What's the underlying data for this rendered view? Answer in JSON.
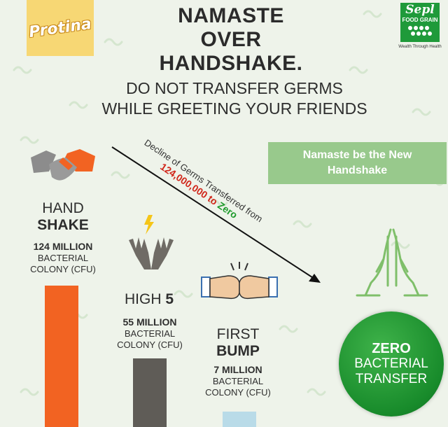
{
  "brand": {
    "left_logo": "Protina",
    "right_logo_line1": "Sepl",
    "right_logo_line2": "FOOD GRAIN",
    "right_logo_tagline": "Wealth Through Health"
  },
  "headline": {
    "line1": "NAMASTE",
    "line2": "OVER",
    "line3": "HANDSHAKE."
  },
  "subhead": {
    "line1": "DO NOT TRANSFER GERMS",
    "line2": "WHILE GREETING YOUR FRIENDS"
  },
  "banner": {
    "line1": "Namaste be the New",
    "line2": "Handshake"
  },
  "arrow": {
    "line1": "Decline of Germs Transferred from",
    "from": "124,000,000",
    "to_word": "to",
    "to": "Zero"
  },
  "items": [
    {
      "title_a": "HAND",
      "title_b": "SHAKE",
      "count": "124 MILLION",
      "unit1": "BACTERIAL",
      "unit2": "COLONY (CFU)",
      "value": 124000000,
      "color": "#f26322",
      "icon": "handshake-icon"
    },
    {
      "title_a": "HIGH",
      "title_b": "5",
      "count": "55 MILLION",
      "unit1": "BACTERIAL",
      "unit2": "COLONY (CFU)",
      "value": 55000000,
      "color": "#5f5c57",
      "icon": "high-five-icon"
    },
    {
      "title_a": "FIRST",
      "title_b": "BUMP",
      "count": "7 MILLION",
      "unit1": "BACTERIAL",
      "unit2": "COLONY (CFU)",
      "value": 7000000,
      "color": "#b9dbe8",
      "icon": "fist-bump-icon"
    }
  ],
  "zero": {
    "line1": "ZERO",
    "line2": "BACTERIAL",
    "line3": "TRANSFER",
    "icon": "namaste-hands-icon"
  }
}
